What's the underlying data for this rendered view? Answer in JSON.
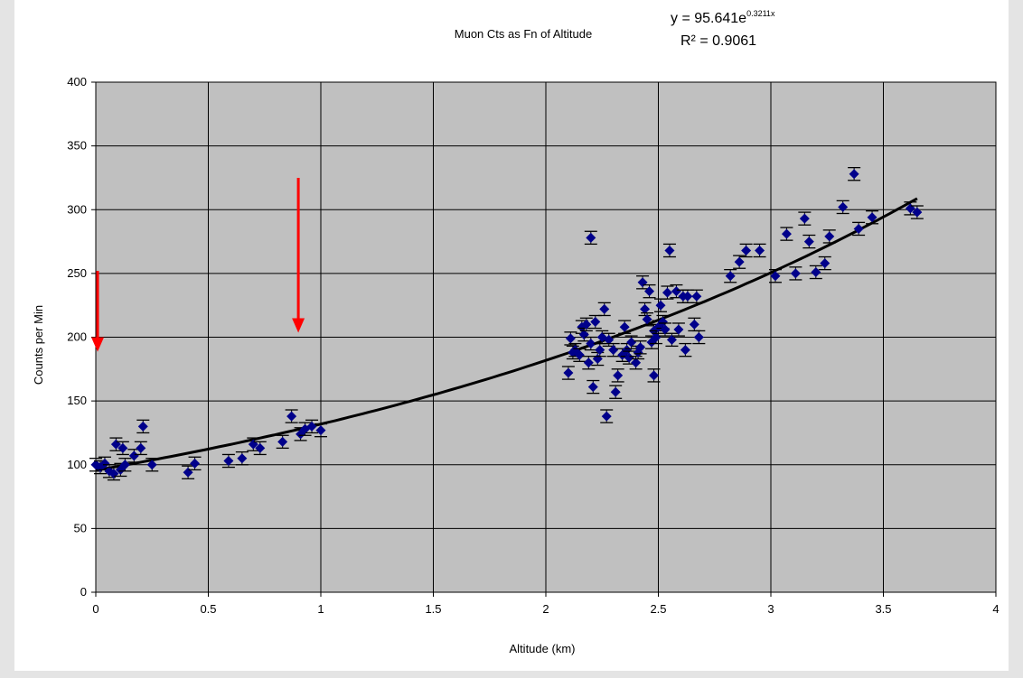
{
  "chart_data": {
    "type": "scatter",
    "title": "Muon Cts as Fn of Altitude",
    "xlabel": "Altitude (km)",
    "ylabel": "Counts per Min",
    "xlim": [
      0,
      4
    ],
    "ylim": [
      0,
      400
    ],
    "x_ticks": [
      "0",
      "0.5",
      "1",
      "1.5",
      "2",
      "2.5",
      "3",
      "3.5",
      "4"
    ],
    "y_ticks": [
      "0",
      "50",
      "100",
      "150",
      "200",
      "250",
      "300",
      "350",
      "400"
    ],
    "grid": true,
    "legend": "none",
    "colors": {
      "plot_background": "#c0c0c0",
      "points": "#00008b",
      "trendline": "#000000",
      "arrows": "#ff0000",
      "gridlines": "#000000"
    },
    "error_bar": 5,
    "trendline": {
      "type": "exponential",
      "a": 95.641,
      "b": 0.3211,
      "equation_prefix": "y = 95.641e",
      "equation_exponent": "0.3211x",
      "r_squared_label": "R² = 0.9061"
    },
    "annotations": [
      {
        "type": "arrow",
        "x": 0.0,
        "y_from": 252,
        "y_to": 190
      },
      {
        "type": "arrow",
        "x": 0.9,
        "y_from": 325,
        "y_to": 205
      }
    ],
    "points": [
      [
        0.0,
        100
      ],
      [
        0.02,
        98
      ],
      [
        0.04,
        101
      ],
      [
        0.06,
        95
      ],
      [
        0.08,
        93
      ],
      [
        0.09,
        116
      ],
      [
        0.11,
        96
      ],
      [
        0.12,
        113
      ],
      [
        0.13,
        100
      ],
      [
        0.17,
        107
      ],
      [
        0.2,
        113
      ],
      [
        0.21,
        130
      ],
      [
        0.25,
        100
      ],
      [
        0.41,
        94
      ],
      [
        0.44,
        101
      ],
      [
        0.59,
        103
      ],
      [
        0.65,
        105
      ],
      [
        0.7,
        116
      ],
      [
        0.73,
        113
      ],
      [
        0.83,
        118
      ],
      [
        0.87,
        138
      ],
      [
        0.91,
        124
      ],
      [
        0.93,
        128
      ],
      [
        0.96,
        130
      ],
      [
        1.0,
        127
      ],
      [
        2.1,
        172
      ],
      [
        2.11,
        199
      ],
      [
        2.12,
        188
      ],
      [
        2.13,
        190
      ],
      [
        2.15,
        186
      ],
      [
        2.16,
        208
      ],
      [
        2.17,
        202
      ],
      [
        2.18,
        210
      ],
      [
        2.19,
        180
      ],
      [
        2.2,
        195
      ],
      [
        2.2,
        278
      ],
      [
        2.21,
        161
      ],
      [
        2.22,
        212
      ],
      [
        2.23,
        183
      ],
      [
        2.24,
        190
      ],
      [
        2.25,
        200
      ],
      [
        2.26,
        222
      ],
      [
        2.27,
        138
      ],
      [
        2.28,
        198
      ],
      [
        2.3,
        190
      ],
      [
        2.31,
        157
      ],
      [
        2.32,
        170
      ],
      [
        2.34,
        186
      ],
      [
        2.35,
        208
      ],
      [
        2.36,
        190
      ],
      [
        2.37,
        184
      ],
      [
        2.38,
        196
      ],
      [
        2.4,
        180
      ],
      [
        2.41,
        188
      ],
      [
        2.42,
        192
      ],
      [
        2.43,
        243
      ],
      [
        2.44,
        222
      ],
      [
        2.45,
        214
      ],
      [
        2.46,
        236
      ],
      [
        2.47,
        196
      ],
      [
        2.48,
        205
      ],
      [
        2.48,
        170
      ],
      [
        2.49,
        200
      ],
      [
        2.5,
        208
      ],
      [
        2.51,
        225
      ],
      [
        2.52,
        212
      ],
      [
        2.53,
        206
      ],
      [
        2.54,
        235
      ],
      [
        2.55,
        268
      ],
      [
        2.56,
        198
      ],
      [
        2.58,
        236
      ],
      [
        2.59,
        206
      ],
      [
        2.61,
        232
      ],
      [
        2.62,
        190
      ],
      [
        2.63,
        232
      ],
      [
        2.66,
        210
      ],
      [
        2.67,
        232
      ],
      [
        2.68,
        200
      ],
      [
        2.82,
        248
      ],
      [
        2.86,
        259
      ],
      [
        2.89,
        268
      ],
      [
        2.95,
        268
      ],
      [
        3.02,
        248
      ],
      [
        3.07,
        281
      ],
      [
        3.11,
        250
      ],
      [
        3.15,
        293
      ],
      [
        3.17,
        275
      ],
      [
        3.2,
        251
      ],
      [
        3.24,
        258
      ],
      [
        3.26,
        279
      ],
      [
        3.32,
        302
      ],
      [
        3.37,
        328
      ],
      [
        3.39,
        285
      ],
      [
        3.45,
        294
      ],
      [
        3.62,
        301
      ],
      [
        3.65,
        298
      ]
    ]
  }
}
